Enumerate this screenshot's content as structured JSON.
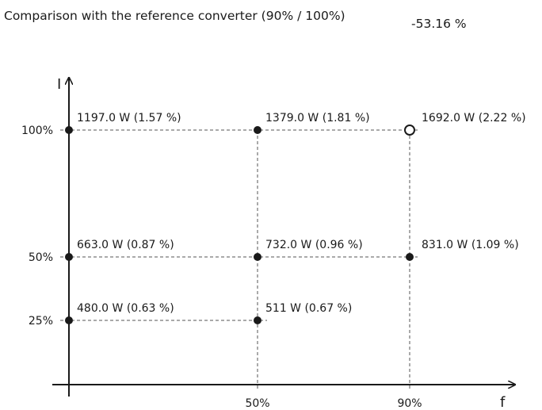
{
  "comparison": {
    "label": "Comparison with the reference converter (90% / 100%)",
    "value": "-53.16 %"
  },
  "chart_data": {
    "type": "scatter",
    "x_axis_label": "f",
    "y_axis_label": "I",
    "x_ticks": [
      "50%",
      "90%"
    ],
    "y_ticks": [
      "25%",
      "50%",
      "100%"
    ],
    "x_values": [
      0,
      50,
      90
    ],
    "y_values": [
      25,
      50,
      100
    ],
    "grid": "dashed",
    "points": [
      {
        "f": 0,
        "i": 100,
        "label": "1197.0 W (1.57 %)",
        "style": "filled"
      },
      {
        "f": 50,
        "i": 100,
        "label": "1379.0 W (1.81 %)",
        "style": "filled"
      },
      {
        "f": 90,
        "i": 100,
        "label": "1692.0 W (2.22 %)",
        "style": "hollow"
      },
      {
        "f": 0,
        "i": 50,
        "label": "663.0 W (0.87 %)",
        "style": "filled"
      },
      {
        "f": 50,
        "i": 50,
        "label": "732.0 W (0.96 %)",
        "style": "filled"
      },
      {
        "f": 90,
        "i": 50,
        "label": "831.0 W (1.09 %)",
        "style": "filled"
      },
      {
        "f": 0,
        "i": 25,
        "label": "480.0 W (0.63 %)",
        "style": "filled"
      },
      {
        "f": 50,
        "i": 25,
        "label": "511 W (0.67 %)",
        "style": "filled"
      }
    ]
  }
}
